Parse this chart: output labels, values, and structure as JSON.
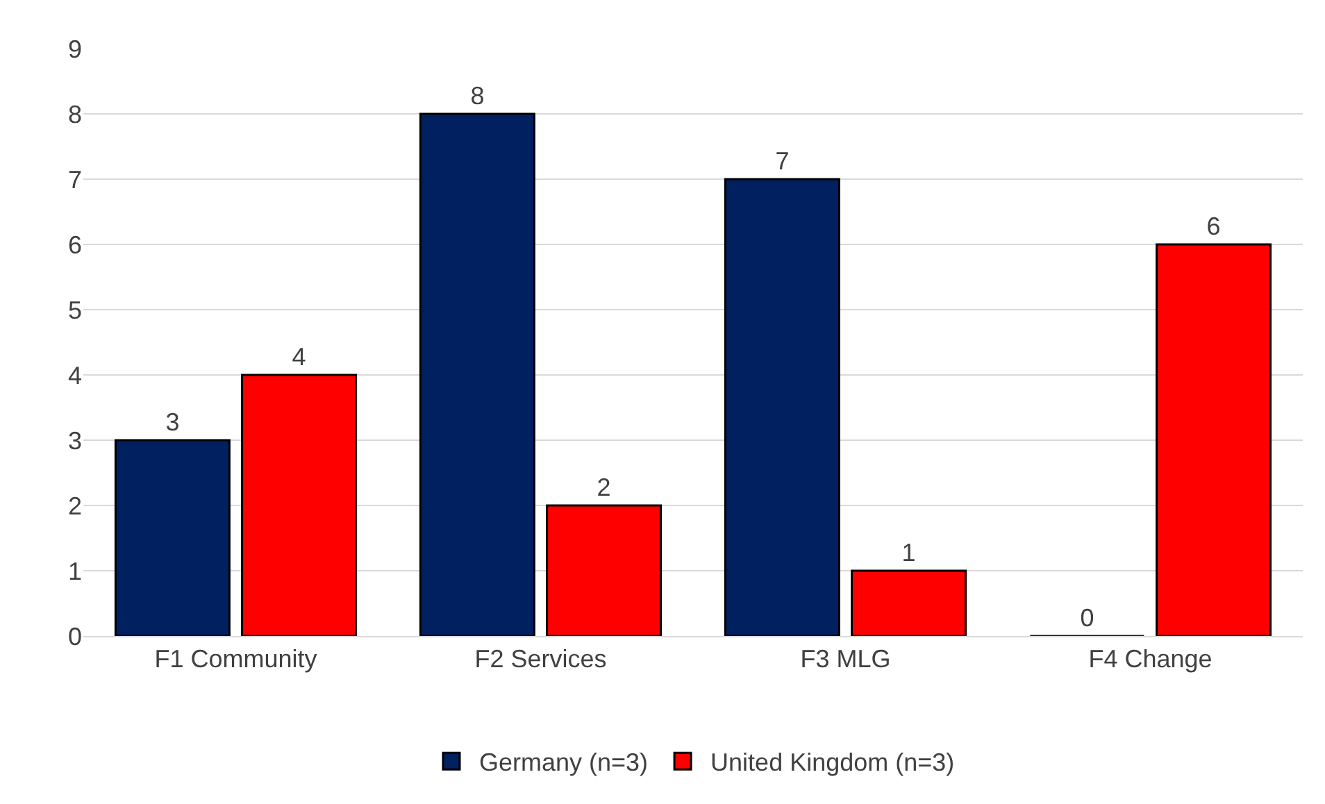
{
  "chart_data": {
    "type": "bar",
    "categories": [
      "F1 Community",
      "F2 Services",
      "F3 MLG",
      "F4 Change"
    ],
    "series": [
      {
        "name": "Germany (n=3)",
        "color": "#002060",
        "values": [
          3,
          8,
          7,
          0
        ]
      },
      {
        "name": "United Kingdom (n=3)",
        "color": "#ff0000",
        "values": [
          4,
          2,
          1,
          6
        ]
      }
    ],
    "ylim": [
      0,
      9
    ],
    "yticks": [
      0,
      1,
      2,
      3,
      4,
      5,
      6,
      7,
      8,
      9
    ],
    "grid": "y",
    "legend": "bottom",
    "data_labels": true
  }
}
